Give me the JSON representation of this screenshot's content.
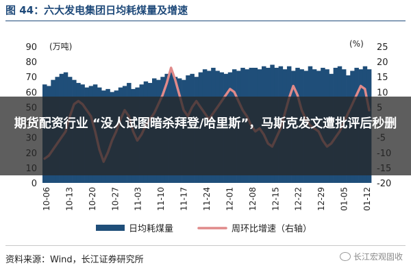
{
  "figure": {
    "title": "图 44：六大发电集团日均耗煤量及增速",
    "source": "资料来源：Wind，长江证券研究所",
    "watermark": "长江宏观固收",
    "watermark_icon": "wechat-icon"
  },
  "banner": {
    "text": "期货配资行业 “没人试图暗杀拜登/哈里斯”，马斯克发文遭批评后秒删"
  },
  "colors": {
    "bar": "#1f4e79",
    "line": "#e08a8a",
    "title": "#1f4a7a",
    "banner_bg": "rgba(38,38,38,0.74)"
  },
  "chart_data": {
    "type": "bar",
    "title": "",
    "left_unit": "(万吨)",
    "right_unit": "(%)",
    "ylim_left": [
      0,
      90
    ],
    "ylim_right": [
      -20,
      25
    ],
    "left_ticks": [
      "0",
      "10",
      "20",
      "30",
      "40",
      "50",
      "60",
      "70",
      "80",
      "90"
    ],
    "right_ticks": [
      "-20",
      "-15",
      "-10",
      "-5",
      "0",
      "5",
      "10",
      "15",
      "20",
      "25"
    ],
    "grid": false,
    "legend_position": "bottom",
    "x_tick_labels": [
      "10-06",
      "10-13",
      "10-20",
      "10-27",
      "11-03",
      "11-10",
      "11-17",
      "11-24",
      "12-01",
      "12-08",
      "12-15",
      "12-22",
      "12-29",
      "01-05",
      "01-12"
    ],
    "series": [
      {
        "name": "日均耗煤量",
        "type": "bar",
        "axis": "left",
        "values": [
          65,
          64,
          68,
          70,
          72,
          73,
          70,
          68,
          66,
          65,
          63,
          64,
          65,
          63,
          61,
          62,
          60,
          61,
          63,
          64,
          66,
          62,
          63,
          65,
          67,
          66,
          69,
          68,
          70,
          72,
          73,
          70,
          69,
          68,
          71,
          72,
          70,
          73,
          75,
          74,
          76,
          74,
          73,
          72,
          73,
          75,
          74,
          76,
          75,
          76,
          76,
          75,
          77,
          76,
          78,
          76,
          77,
          75,
          77,
          74,
          76,
          75,
          74,
          77,
          75,
          74,
          76,
          75,
          72,
          76,
          77,
          75,
          71,
          74,
          76,
          75,
          77,
          75
        ]
      },
      {
        "name": "周环比增速（右轴）",
        "type": "line",
        "axis": "right",
        "values": [
          -12,
          -11,
          -9,
          -7,
          -5,
          -3,
          2,
          6,
          7,
          6,
          4,
          2,
          -3,
          -9,
          -13,
          -10,
          -6,
          -3,
          1,
          4,
          2,
          -3,
          -6,
          -4,
          -1,
          1,
          3,
          6,
          9,
          13,
          18,
          14,
          9,
          4,
          2,
          5,
          7,
          5,
          3,
          1,
          3,
          5,
          7,
          9,
          11,
          10,
          7,
          4,
          2,
          -1,
          -3,
          -2,
          -4,
          -7,
          -8,
          -5,
          -2,
          3,
          8,
          12,
          9,
          4,
          1,
          -1,
          -2,
          -3,
          -6,
          -8,
          -7,
          -5,
          -3,
          0,
          3,
          6,
          9,
          12,
          11,
          4
        ]
      }
    ]
  }
}
